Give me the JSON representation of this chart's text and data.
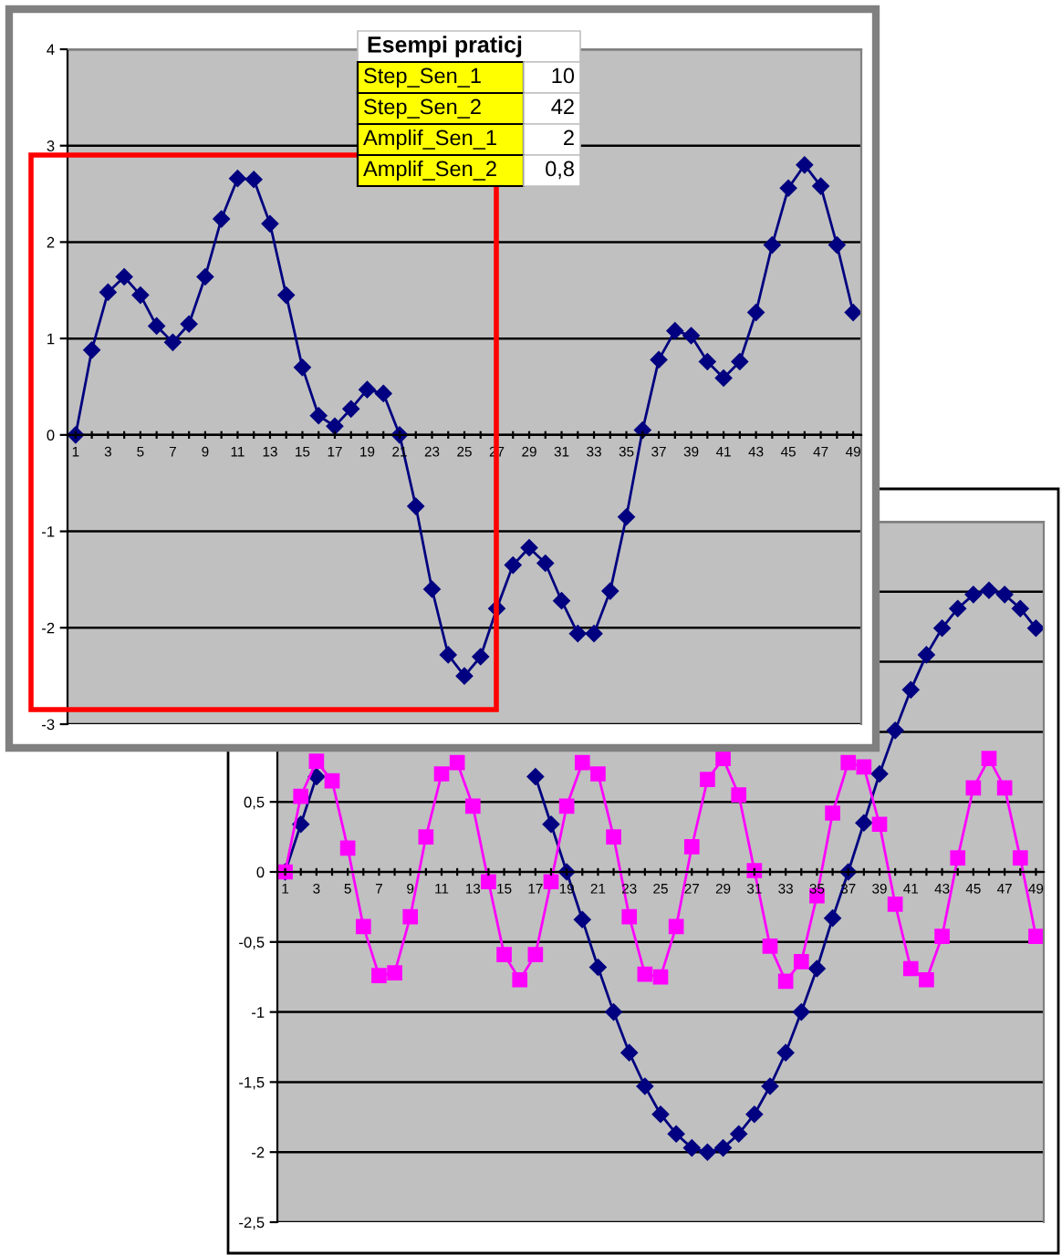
{
  "chart_data": [
    {
      "type": "line",
      "categories": [
        "1",
        null,
        "3",
        null,
        "5",
        null,
        "7",
        null,
        "9",
        null,
        "11",
        null,
        "13",
        null,
        "15",
        null,
        "17",
        null,
        "19",
        null,
        "21",
        null,
        "23",
        null,
        "25",
        null,
        "27",
        null,
        "29",
        null,
        "31",
        null,
        "33",
        null,
        "35",
        null,
        "37",
        null,
        "39",
        null,
        "41",
        null,
        "43",
        null,
        "45",
        null,
        "47",
        null,
        "49"
      ],
      "series": [
        {
          "color": "#000080",
          "values": [
            0,
            0.88,
            1.48,
            1.64,
            1.45,
            1.13,
            0.96,
            1.15,
            1.64,
            2.24,
            2.66,
            2.65,
            2.19,
            1.45,
            0.7,
            0.2,
            0.09,
            0.27,
            0.47,
            0.43,
            0,
            -0.74,
            -1.6,
            -2.28,
            -2.5,
            -2.3,
            -1.8,
            -1.35,
            -1.17,
            -1.33,
            -1.72,
            -2.06,
            -2.06,
            -1.62,
            -0.85,
            0.05,
            0.78,
            1.08,
            1.03,
            0.76,
            0.59,
            0.76,
            1.27,
            1.97,
            2.56,
            2.8,
            2.58,
            1.97,
            1.27
          ]
        }
      ],
      "ylim": [
        -3,
        4
      ],
      "yticks": [
        -3,
        -2,
        -1,
        0,
        1,
        2,
        3,
        4
      ],
      "grid": "y",
      "marker": "diamond",
      "line_style": "solid",
      "annotations": [
        "Esempi praticj",
        "Step_Sen_1",
        "10",
        "Step_Sen_2",
        "42",
        "Amplif_Sen_1",
        "2",
        "Amplif_Sen_2",
        "0,8"
      ]
    },
    {
      "type": "line",
      "categories": [
        "1",
        null,
        "3",
        null,
        "5",
        null,
        "7",
        null,
        "9",
        null,
        "11",
        null,
        "13",
        null,
        "15",
        null,
        "17",
        null,
        "19",
        null,
        "21",
        null,
        "23",
        null,
        "25",
        null,
        "27",
        null,
        "29",
        null,
        "31",
        null,
        "33",
        null,
        "35",
        null,
        "37",
        null,
        "39",
        null,
        "41",
        null,
        "43",
        null,
        "45",
        null,
        "47",
        null,
        "49"
      ],
      "series": [
        {
          "color": "#000080",
          "marker": "diamond",
          "values": [
            0,
            0.34,
            0.68,
            null,
            null,
            null,
            null,
            null,
            null,
            null,
            null,
            null,
            null,
            null,
            null,
            null,
            0.68,
            0.34,
            0,
            -0.34,
            -0.68,
            -1.0,
            -1.29,
            -1.53,
            -1.73,
            -1.87,
            -1.97,
            -2.0,
            -1.97,
            -1.87,
            -1.73,
            -1.53,
            -1.29,
            -1.0,
            -0.69,
            -0.33,
            0,
            0.35,
            0.7,
            1.01,
            1.3,
            1.55,
            1.74,
            1.88,
            1.98,
            2.01,
            1.98,
            1.88,
            1.74
          ]
        },
        {
          "color": "#ff00ff",
          "marker": "square",
          "values": [
            0,
            0.54,
            0.79,
            0.65,
            0.17,
            -0.39,
            -0.74,
            -0.72,
            -0.32,
            0.25,
            0.7,
            0.78,
            0.47,
            -0.07,
            -0.59,
            -0.77,
            -0.59,
            -0.07,
            0.47,
            0.78,
            0.7,
            0.25,
            -0.32,
            -0.73,
            -0.75,
            -0.39,
            0.18,
            0.66,
            0.81,
            0.55,
            0.01,
            -0.53,
            -0.78,
            -0.64,
            -0.17,
            0.42,
            0.78,
            0.75,
            0.34,
            -0.23,
            -0.69,
            -0.77,
            -0.46,
            0.1,
            0.6,
            0.81,
            0.6,
            0.1,
            -0.46
          ]
        }
      ],
      "ylim": [
        -2.5,
        2.5
      ],
      "yticks": [
        {
          "value": -2.5,
          "label": "-2,5"
        },
        -2,
        {
          "value": -1.5,
          "label": "-1,5"
        },
        -1,
        {
          "value": -0.5,
          "label": "-0,5"
        },
        0,
        {
          "value": 0.5,
          "label": "0,5"
        },
        {
          "value": 1,
          "label": null
        },
        {
          "value": 1.5,
          "label": null
        },
        {
          "value": 2,
          "label": null
        },
        {
          "value": 2.5,
          "label": null
        }
      ],
      "grid": "y",
      "line_style": "solid"
    }
  ]
}
